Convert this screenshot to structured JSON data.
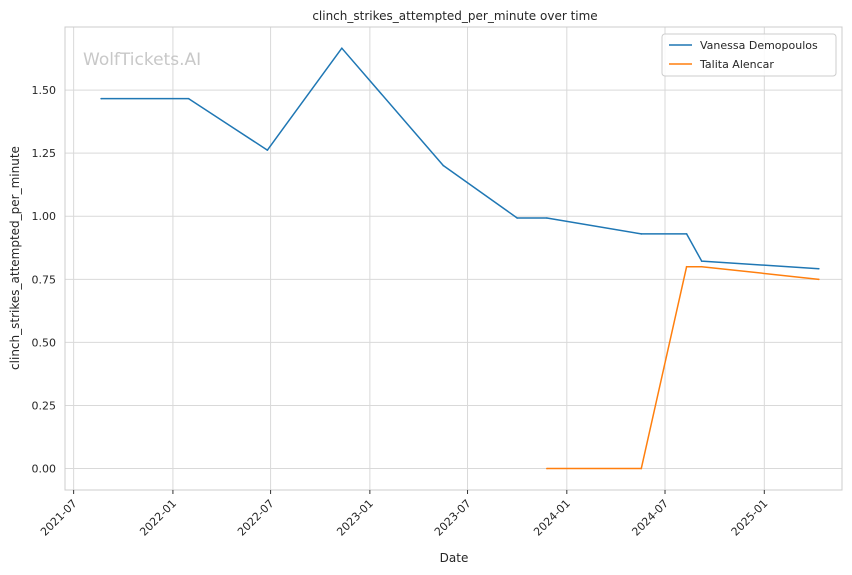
{
  "chart_data": {
    "type": "line",
    "title": "clinch_strikes_attempted_per_minute over time",
    "xlabel": "Date",
    "ylabel": "clinch_strikes_attempted_per_minute",
    "watermark": "WolfTickets.AI",
    "x_ticks": [
      "2021-07",
      "2022-01",
      "2022-07",
      "2023-01",
      "2023-07",
      "2024-01",
      "2024-07",
      "2025-01"
    ],
    "y_ticks": [
      "0.00",
      "0.25",
      "0.50",
      "0.75",
      "1.00",
      "1.25",
      "1.50"
    ],
    "xlim": [
      "2021-06-15",
      "2025-05-25"
    ],
    "ylim": [
      -0.085,
      1.75
    ],
    "grid": true,
    "legend_position": "top-right",
    "series": [
      {
        "name": "Vanessa Demopoulos",
        "color": "#1f77b4",
        "points": [
          {
            "x": "2021-08-21",
            "y": 1.466
          },
          {
            "x": "2022-01-30",
            "y": 1.466
          },
          {
            "x": "2022-06-25",
            "y": 1.262
          },
          {
            "x": "2022-11-10",
            "y": 1.666
          },
          {
            "x": "2023-05-17",
            "y": 1.201
          },
          {
            "x": "2023-10-01",
            "y": 0.993
          },
          {
            "x": "2023-11-25",
            "y": 0.993
          },
          {
            "x": "2024-05-18",
            "y": 0.93
          },
          {
            "x": "2024-08-10",
            "y": 0.93
          },
          {
            "x": "2024-09-07",
            "y": 0.822
          },
          {
            "x": "2025-04-12",
            "y": 0.792
          }
        ]
      },
      {
        "name": "Talita Alencar",
        "color": "#ff7f0e",
        "points": [
          {
            "x": "2023-11-25",
            "y": 0.0
          },
          {
            "x": "2024-05-18",
            "y": 0.0
          },
          {
            "x": "2024-08-10",
            "y": 0.8
          },
          {
            "x": "2024-09-07",
            "y": 0.8
          },
          {
            "x": "2025-04-12",
            "y": 0.75
          }
        ]
      }
    ]
  }
}
